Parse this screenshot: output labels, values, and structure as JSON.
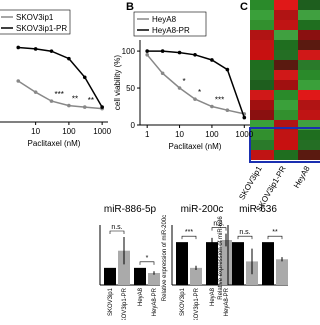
{
  "panel_a": {
    "legend": [
      "SKOV3ip1",
      "SKOV3ip1-PR"
    ],
    "xticks": [
      10,
      100,
      1000
    ],
    "xlim": [
      0.6,
      1500
    ],
    "xscale": "log",
    "ylim": [
      0,
      110
    ],
    "xlabel": "Paclitaxel (nM)",
    "x": [
      3,
      10,
      30,
      100,
      300,
      1000
    ],
    "series": [
      {
        "name": "SKOV3ip1",
        "color": "#888888",
        "values": [
          55,
          40,
          28,
          22,
          20,
          18
        ]
      },
      {
        "name": "SKOV3ip1-PR",
        "color": "#000000",
        "values": [
          100,
          98,
          95,
          85,
          60,
          20
        ]
      }
    ],
    "annotations": [
      "***",
      "**",
      "**"
    ]
  },
  "panel_b": {
    "letter": "B",
    "legend": [
      "HeyA8",
      "HeyA8-PR"
    ],
    "ylabel": "cell viability (%)",
    "yticks": [
      0,
      50,
      100
    ],
    "ylim": [
      0,
      115
    ],
    "xticks": [
      1,
      10,
      100,
      1000
    ],
    "xlim": [
      0.6,
      1500
    ],
    "xscale": "log",
    "xlabel": "Paclitaxel (nM)",
    "x": [
      1,
      3,
      10,
      30,
      100,
      300,
      1000
    ],
    "series": [
      {
        "name": "HeyA8",
        "color": "#888888",
        "values": [
          95,
          70,
          50,
          35,
          25,
          20,
          15
        ]
      },
      {
        "name": "HeyA8-PR",
        "color": "#000000",
        "values": [
          100,
          100,
          98,
          95,
          88,
          75,
          10
        ]
      }
    ],
    "annotations": [
      "*",
      "*",
      "***"
    ]
  },
  "panel_c": {
    "letter": "C",
    "columns": [
      "SKOV3ip1",
      "SKOV3ip1-PR",
      "HeyA8"
    ]
  },
  "bar_panels": [
    {
      "title": "miR-886-5p",
      "categories": [
        "SKOV3ip1",
        "SKOV3ip1-PR",
        "HeyA8",
        "HeyA8-PR"
      ],
      "ylim": [
        0,
        3.5
      ],
      "values": [
        1,
        2,
        1,
        0.7
      ],
      "errors": [
        0,
        0.8,
        0,
        0.1
      ],
      "annotations": [
        "n.s.",
        "*"
      ]
    },
    {
      "title": "miR-200c",
      "ylabel": "Relative expression of miR-200c",
      "categories": [
        "SKOV3ip1",
        "SKOV3ip1-PR",
        "HeyA8",
        "HeyA8-PR"
      ],
      "ylim": [
        0,
        1.4
      ],
      "values": [
        1,
        0.4,
        1,
        1.05
      ],
      "errors": [
        0,
        0.05,
        0.1,
        0.15
      ],
      "annotations": [
        "***",
        "n.s."
      ]
    },
    {
      "title": "miR-636",
      "ylabel": "Relative expression of miR-636",
      "ylim": [
        0,
        1.4
      ],
      "values": [
        1,
        0.55,
        1,
        0.6
      ],
      "errors": [
        0,
        0.3,
        0,
        0.05
      ],
      "annotations": [
        "n.s.",
        "**"
      ]
    }
  ]
}
